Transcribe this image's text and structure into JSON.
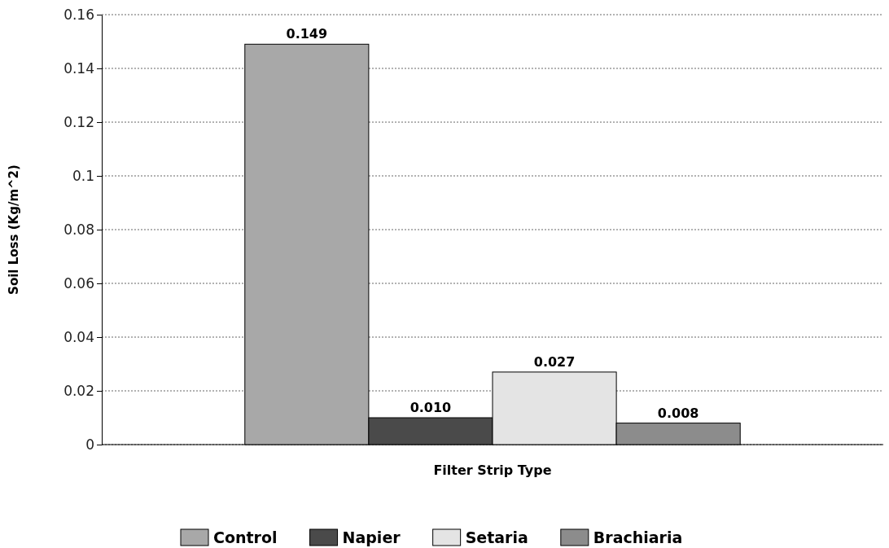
{
  "chart_data": {
    "type": "bar",
    "xlabel": "Filter Strip Type",
    "ylabel": "Soil Loss (Kg/m^2)",
    "categories": [
      null
    ],
    "series": [
      {
        "name": "Control",
        "color": "#a8a8a8",
        "values": [
          0.149
        ],
        "value_labels": [
          "0.149"
        ]
      },
      {
        "name": "Napier",
        "color": "#4a4a4a",
        "values": [
          0.01
        ],
        "value_labels": [
          "0.010"
        ]
      },
      {
        "name": "Setaria",
        "color": "#e4e4e4",
        "values": [
          0.027
        ],
        "value_labels": [
          "0.027"
        ]
      },
      {
        "name": "Brachiaria",
        "color": "#8c8c8c",
        "values": [
          0.008
        ],
        "value_labels": [
          "0.008"
        ]
      }
    ],
    "ylim": [
      0,
      0.16
    ],
    "yticks": [
      0,
      0.02,
      0.04,
      0.06,
      0.08,
      0.1,
      0.12,
      0.14,
      0.16
    ],
    "grid": "y",
    "legend": "bottom"
  }
}
